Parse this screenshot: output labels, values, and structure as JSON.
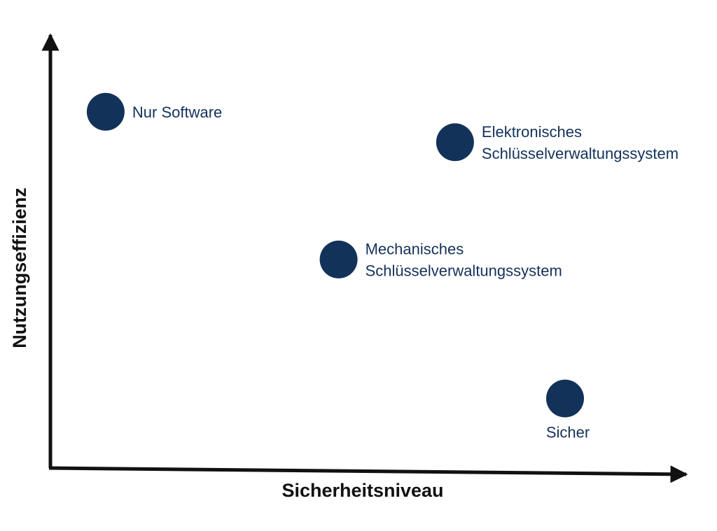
{
  "chart_data": {
    "type": "scatter",
    "title": "",
    "xlabel": "Sicherheitsniveau",
    "ylabel": "Nutzungseffizienz",
    "xlim": [
      0,
      100
    ],
    "ylim": [
      0,
      100
    ],
    "grid": false,
    "legend": "none",
    "axis_tick_labels": false,
    "marker_color": "#13325a",
    "axis_color": "#111111",
    "points": [
      {
        "label": [
          "Nur Software"
        ],
        "x": 8,
        "y": 82,
        "label_side": "right"
      },
      {
        "label": [
          "Elektronisches",
          "Schlüsselverwaltungssystem"
        ],
        "x": 62,
        "y": 75,
        "label_side": "right"
      },
      {
        "label": [
          "Mechanisches",
          "Schlüsselverwaltungssystem"
        ],
        "x": 44,
        "y": 48,
        "label_side": "right"
      },
      {
        "label": [
          "Sicher"
        ],
        "x": 79,
        "y": 16,
        "label_side": "below"
      }
    ]
  }
}
